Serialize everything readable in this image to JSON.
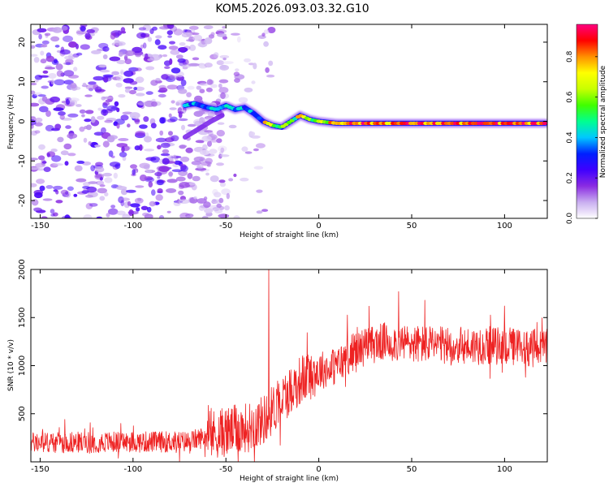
{
  "title": "KOM5.2026.093.03.32.G10",
  "chart_data": [
    {
      "type": "heatmap",
      "name": "spectrogram",
      "xlabel": "Height of straight line (km)",
      "ylabel": "Frequency (Hz)",
      "xlim": [
        -155,
        123
      ],
      "ylim": [
        -24.5,
        24.5
      ],
      "xticks": [
        -150,
        -100,
        -50,
        0,
        50,
        100
      ],
      "yticks": [
        -20,
        -10,
        0,
        10,
        20
      ],
      "noise_region": {
        "x_range": [
          -155,
          -50
        ],
        "frequency_range": [
          -24.5,
          24.5
        ],
        "amplitude_range": [
          0.05,
          0.25
        ]
      },
      "signal_track": [
        {
          "x": -72,
          "frequency": 4
        },
        {
          "x": -67,
          "frequency": 4.5
        },
        {
          "x": -60,
          "frequency": 3.5
        },
        {
          "x": -55,
          "frequency": 3
        },
        {
          "x": -50,
          "frequency": 4
        },
        {
          "x": -45,
          "frequency": 3
        },
        {
          "x": -40,
          "frequency": 3.5
        },
        {
          "x": -35,
          "frequency": 2
        },
        {
          "x": -30,
          "frequency": 0
        },
        {
          "x": -25,
          "frequency": -1
        },
        {
          "x": -20,
          "frequency": -1.5
        },
        {
          "x": -15,
          "frequency": 0
        },
        {
          "x": -10,
          "frequency": 1.5
        },
        {
          "x": -5,
          "frequency": 0.5
        },
        {
          "x": 0,
          "frequency": 0
        },
        {
          "x": 10,
          "frequency": -0.5
        },
        {
          "x": 122,
          "frequency": -0.5
        }
      ],
      "secondary_track": [
        {
          "x": -72,
          "frequency": -4
        },
        {
          "x": -65,
          "frequency": -2
        },
        {
          "x": -58,
          "frequency": 0
        },
        {
          "x": -52,
          "frequency": 1.5
        }
      ],
      "colorbar": {
        "label": "Normalized spectral amplitude",
        "range": [
          0,
          0.96
        ],
        "ticks": [
          "0.0",
          "0.2",
          "0.4",
          "0.6",
          "0.8"
        ],
        "tick_values": [
          0,
          0.2,
          0.4,
          0.6,
          0.8
        ],
        "colors": [
          "#ffffff",
          "#c9aef0",
          "#8a2be2",
          "#3f00ff",
          "#0020ff",
          "#00c8ff",
          "#00ff90",
          "#40ff00",
          "#c8ff00",
          "#ffff00",
          "#ff9000",
          "#ff0000",
          "#ff0080"
        ]
      }
    },
    {
      "type": "line",
      "name": "snr",
      "xlabel": "Height of straight line (km)",
      "ylabel": "SNR (10 * v/v)",
      "xlim": [
        -155,
        123
      ],
      "ylim": [
        0,
        2000
      ],
      "xticks": [
        -150,
        -100,
        -50,
        0,
        50,
        100
      ],
      "yticks": [
        500,
        1000,
        1500,
        2000
      ],
      "color": "#ee2222",
      "trend": [
        {
          "x": -155,
          "snr": 200
        },
        {
          "x": -70,
          "snr": 210
        },
        {
          "x": -58,
          "snr": 280
        },
        {
          "x": -48,
          "snr": 320
        },
        {
          "x": -38,
          "snr": 360
        },
        {
          "x": -30,
          "snr": 430
        },
        {
          "x": -20,
          "snr": 650
        },
        {
          "x": -10,
          "snr": 850
        },
        {
          "x": 0,
          "snr": 950
        },
        {
          "x": 10,
          "snr": 1000
        },
        {
          "x": 20,
          "snr": 1170
        },
        {
          "x": 35,
          "snr": 1250
        },
        {
          "x": 50,
          "snr": 1230
        },
        {
          "x": 70,
          "snr": 1200
        },
        {
          "x": 90,
          "snr": 1210
        },
        {
          "x": 110,
          "snr": 1190
        },
        {
          "x": 123,
          "snr": 1180
        }
      ],
      "peaks": [
        {
          "x": -27,
          "snr": 2000
        },
        {
          "x": 43,
          "snr": 1770
        },
        {
          "x": 57,
          "snr": 1680
        },
        {
          "x": 100,
          "snr": 1620
        }
      ]
    }
  ]
}
